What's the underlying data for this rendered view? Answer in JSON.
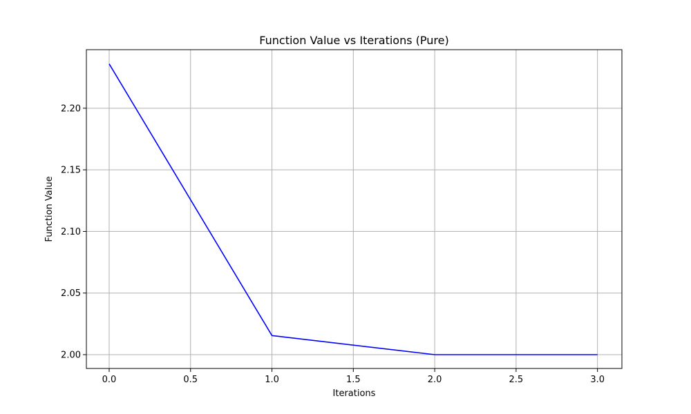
{
  "chart_data": {
    "type": "line",
    "title": "Function Value vs Iterations (Pure)",
    "xlabel": "Iterations",
    "ylabel": "Function Value",
    "xlim": [
      -0.14,
      3.15
    ],
    "ylim": [
      1.9888,
      2.2475
    ],
    "grid": true,
    "x_ticks": [
      0.0,
      0.5,
      1.0,
      1.5,
      2.0,
      2.5,
      3.0
    ],
    "x_tick_labels": [
      "0.0",
      "0.5",
      "1.0",
      "1.5",
      "2.0",
      "2.5",
      "3.0"
    ],
    "y_ticks": [
      2.0,
      2.05,
      2.1,
      2.15,
      2.2
    ],
    "y_tick_labels": [
      "2.00",
      "2.05",
      "2.10",
      "2.15",
      "2.20"
    ],
    "series": [
      {
        "name": "Function Value",
        "color": "#0000ff",
        "x": [
          0,
          1,
          2,
          3
        ],
        "y": [
          2.236,
          2.0155,
          2.0,
          2.0
        ]
      }
    ]
  }
}
